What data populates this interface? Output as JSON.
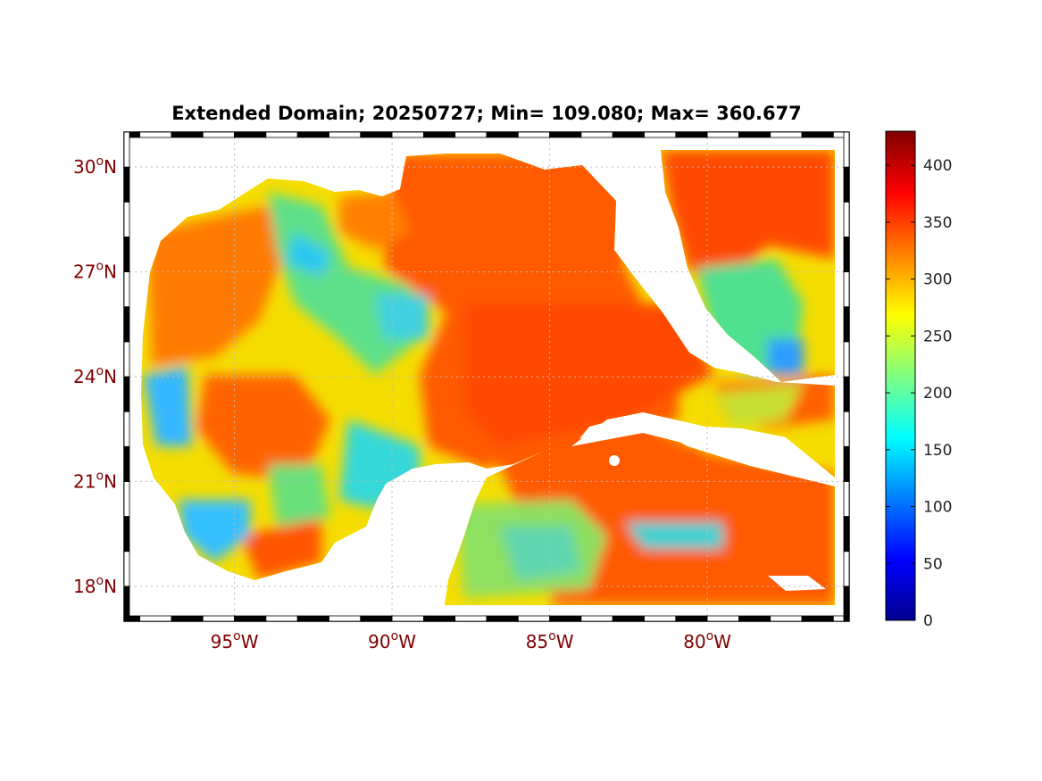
{
  "title": "Extended Domain; 20250727; Min= 109.080; Max= 360.677",
  "map": {
    "lon_range": [
      -98.5,
      -75.5
    ],
    "lat_range": [
      17.0,
      31.0
    ],
    "lat_ticks": [
      {
        "value": 30,
        "deg": "30",
        "sup": "o",
        "hem": "N"
      },
      {
        "value": 27,
        "deg": "27",
        "sup": "o",
        "hem": "N"
      },
      {
        "value": 24,
        "deg": "24",
        "sup": "o",
        "hem": "N"
      },
      {
        "value": 21,
        "deg": "21",
        "sup": "o",
        "hem": "N"
      },
      {
        "value": 18,
        "deg": "18",
        "sup": "o",
        "hem": "N"
      }
    ],
    "lon_ticks": [
      {
        "value": -95,
        "deg": "95",
        "sup": "o",
        "hem": "W"
      },
      {
        "value": -90,
        "deg": "90",
        "sup": "o",
        "hem": "W"
      },
      {
        "value": -85,
        "deg": "85",
        "sup": "o",
        "hem": "W"
      },
      {
        "value": -80,
        "deg": "80",
        "sup": "o",
        "hem": "W"
      }
    ],
    "grid": true,
    "colormap": "jet",
    "land_color": "#ffffff"
  },
  "colorbar": {
    "min": 0,
    "max": 430,
    "ticks": [
      "0",
      "50",
      "100",
      "150",
      "200",
      "250",
      "300",
      "350",
      "400"
    ],
    "tick_values": [
      0,
      50,
      100,
      150,
      200,
      250,
      300,
      350,
      400
    ],
    "colors": [
      "#00008f",
      "#0000ff",
      "#00ffff",
      "#ffff00",
      "#ff0000",
      "#800000"
    ]
  }
}
